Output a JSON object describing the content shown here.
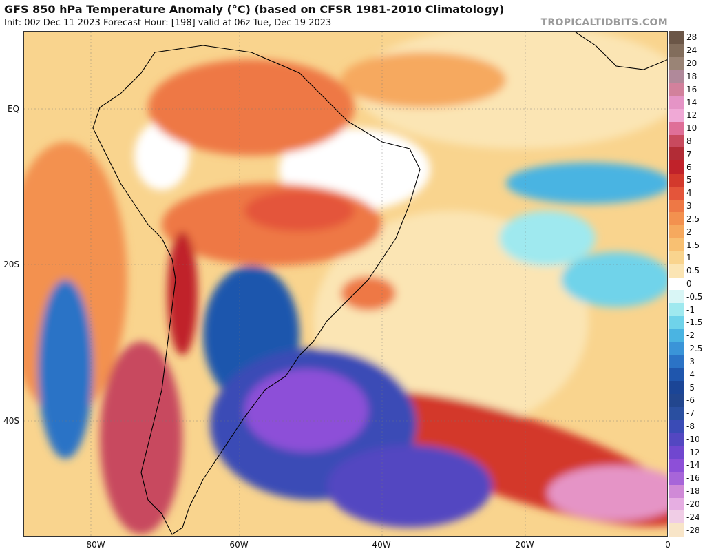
{
  "header": {
    "title": "GFS 850 hPa Temperature Anomaly (°C) (based on CFSR 1981-2010 Climatology)",
    "subtitle": "Init: 00z Dec 11 2023   Forecast Hour: [198]   valid at 06z Tue, Dec 19 2023",
    "brand": "TROPICALTIDBITS.COM"
  },
  "axes": {
    "lat_labels": [
      "EQ",
      "20S",
      "40S"
    ],
    "lon_labels": [
      "80W",
      "60W",
      "40W",
      "20W",
      "0"
    ]
  },
  "legend": {
    "labels": [
      "28",
      "24",
      "20",
      "18",
      "16",
      "14",
      "12",
      "10",
      "8",
      "7",
      "6",
      "5",
      "4",
      "3",
      "2.5",
      "2",
      "1.5",
      "1",
      "0.5",
      "0",
      "-0.5",
      "-1",
      "-1.5",
      "-2",
      "-2.5",
      "-3",
      "-4",
      "-5",
      "-6",
      "-7",
      "-8",
      "-10",
      "-12",
      "-14",
      "-16",
      "-18",
      "-20",
      "-24",
      "-28"
    ],
    "colors": [
      "#6b5647",
      "#826d5c",
      "#9a8476",
      "#b0899a",
      "#d2819c",
      "#e594c6",
      "#f0a9d6",
      "#df6f98",
      "#c84a5e",
      "#b22c36",
      "#c0222a",
      "#d3392c",
      "#e4553a",
      "#ee7845",
      "#f3914f",
      "#f6a95e",
      "#f8c072",
      "#f9d48e",
      "#fbe5b4",
      "#ffffff",
      "#d9f6f6",
      "#9fe9ef",
      "#6fd3ea",
      "#4ab4e2",
      "#3a94d8",
      "#2b73c6",
      "#1f56ad",
      "#1b4596",
      "#22468e",
      "#2a4fa0",
      "#3a4bb6",
      "#5347c1",
      "#7047cf",
      "#8d4fd8",
      "#a765d9",
      "#d08ad7",
      "#e6aee2",
      "#f0cde6",
      "#f8e5c8"
    ]
  },
  "colors": {
    "land_border": "#000000",
    "ocean_warm": "#fbe5b4"
  }
}
